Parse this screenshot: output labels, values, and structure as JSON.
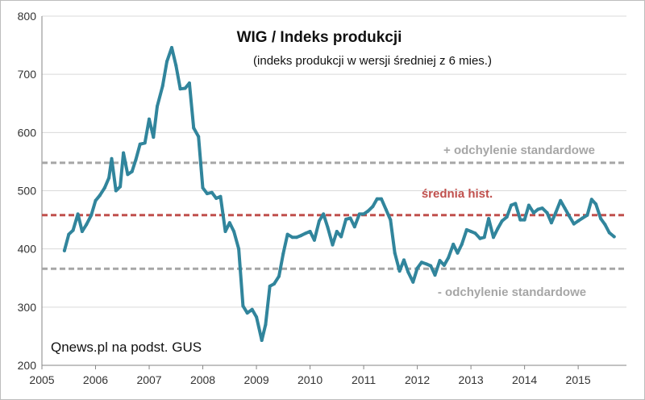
{
  "chart_data": {
    "type": "line",
    "title": "WIG / Indeks produkcji",
    "subtitle": "(indeks produkcji w wersji średniej z 6 mies.)",
    "source": "Qnews.pl na podst. GUS",
    "xlabel": "",
    "ylabel": "",
    "xlim": [
      2005,
      2015.9
    ],
    "ylim": [
      200,
      800
    ],
    "x_ticks": [
      "2005",
      "2006",
      "2007",
      "2008",
      "2009",
      "2010",
      "2011",
      "2012",
      "2013",
      "2014",
      "2015"
    ],
    "y_ticks": [
      "200",
      "300",
      "400",
      "500",
      "600",
      "700",
      "800"
    ],
    "grid": "horizontal",
    "series": [
      {
        "name": "WIG / Indeks produkcji",
        "color": "#31859c",
        "points": [
          [
            2005.42,
            397
          ],
          [
            2005.5,
            425
          ],
          [
            2005.58,
            432
          ],
          [
            2005.67,
            460
          ],
          [
            2005.75,
            430
          ],
          [
            2005.83,
            442
          ],
          [
            2005.92,
            458
          ],
          [
            2006.0,
            483
          ],
          [
            2006.08,
            492
          ],
          [
            2006.17,
            505
          ],
          [
            2006.25,
            522
          ],
          [
            2006.3,
            555
          ],
          [
            2006.38,
            500
          ],
          [
            2006.46,
            507
          ],
          [
            2006.52,
            565
          ],
          [
            2006.6,
            528
          ],
          [
            2006.68,
            533
          ],
          [
            2006.75,
            553
          ],
          [
            2006.83,
            580
          ],
          [
            2006.92,
            582
          ],
          [
            2007.0,
            623
          ],
          [
            2007.08,
            592
          ],
          [
            2007.15,
            645
          ],
          [
            2007.25,
            680
          ],
          [
            2007.33,
            722
          ],
          [
            2007.42,
            746
          ],
          [
            2007.5,
            715
          ],
          [
            2007.58,
            675
          ],
          [
            2007.67,
            676
          ],
          [
            2007.75,
            685
          ],
          [
            2007.83,
            608
          ],
          [
            2007.92,
            593
          ],
          [
            2008.0,
            505
          ],
          [
            2008.08,
            495
          ],
          [
            2008.17,
            497
          ],
          [
            2008.25,
            487
          ],
          [
            2008.33,
            490
          ],
          [
            2008.42,
            430
          ],
          [
            2008.5,
            445
          ],
          [
            2008.58,
            430
          ],
          [
            2008.67,
            400
          ],
          [
            2008.75,
            302
          ],
          [
            2008.83,
            290
          ],
          [
            2008.92,
            296
          ],
          [
            2009.0,
            283
          ],
          [
            2009.1,
            243
          ],
          [
            2009.17,
            270
          ],
          [
            2009.25,
            336
          ],
          [
            2009.33,
            340
          ],
          [
            2009.42,
            353
          ],
          [
            2009.5,
            392
          ],
          [
            2009.58,
            425
          ],
          [
            2009.67,
            420
          ],
          [
            2009.75,
            420
          ],
          [
            2009.83,
            423
          ],
          [
            2009.92,
            427
          ],
          [
            2010.0,
            430
          ],
          [
            2010.08,
            415
          ],
          [
            2010.17,
            448
          ],
          [
            2010.25,
            460
          ],
          [
            2010.33,
            437
          ],
          [
            2010.42,
            407
          ],
          [
            2010.5,
            430
          ],
          [
            2010.58,
            421
          ],
          [
            2010.67,
            451
          ],
          [
            2010.75,
            453
          ],
          [
            2010.83,
            438
          ],
          [
            2010.92,
            460
          ],
          [
            2011.0,
            460
          ],
          [
            2011.08,
            465
          ],
          [
            2011.17,
            473
          ],
          [
            2011.25,
            486
          ],
          [
            2011.33,
            486
          ],
          [
            2011.42,
            467
          ],
          [
            2011.5,
            450
          ],
          [
            2011.58,
            393
          ],
          [
            2011.67,
            362
          ],
          [
            2011.75,
            381
          ],
          [
            2011.83,
            360
          ],
          [
            2011.92,
            343
          ],
          [
            2012.0,
            367
          ],
          [
            2012.08,
            377
          ],
          [
            2012.17,
            374
          ],
          [
            2012.25,
            371
          ],
          [
            2012.33,
            355
          ],
          [
            2012.42,
            380
          ],
          [
            2012.5,
            372
          ],
          [
            2012.58,
            385
          ],
          [
            2012.67,
            408
          ],
          [
            2012.75,
            393
          ],
          [
            2012.83,
            408
          ],
          [
            2012.92,
            433
          ],
          [
            2013.0,
            430
          ],
          [
            2013.08,
            427
          ],
          [
            2013.17,
            418
          ],
          [
            2013.25,
            420
          ],
          [
            2013.33,
            452
          ],
          [
            2013.42,
            420
          ],
          [
            2013.5,
            435
          ],
          [
            2013.58,
            448
          ],
          [
            2013.67,
            455
          ],
          [
            2013.75,
            475
          ],
          [
            2013.83,
            478
          ],
          [
            2013.92,
            450
          ],
          [
            2014.0,
            450
          ],
          [
            2014.08,
            475
          ],
          [
            2014.17,
            462
          ],
          [
            2014.25,
            468
          ],
          [
            2014.33,
            470
          ],
          [
            2014.42,
            462
          ],
          [
            2014.5,
            445
          ],
          [
            2014.58,
            462
          ],
          [
            2014.67,
            483
          ],
          [
            2014.75,
            470
          ],
          [
            2014.83,
            457
          ],
          [
            2014.92,
            443
          ],
          [
            2015.0,
            448
          ],
          [
            2015.08,
            453
          ],
          [
            2015.17,
            458
          ],
          [
            2015.25,
            485
          ],
          [
            2015.33,
            477
          ],
          [
            2015.42,
            452
          ],
          [
            2015.5,
            442
          ],
          [
            2015.58,
            428
          ],
          [
            2015.67,
            421
          ]
        ]
      }
    ],
    "reference_lines": [
      {
        "name": "+ odchylenie standardowe",
        "value": 548,
        "color": "#a6a6a6"
      },
      {
        "name": "średnia hist.",
        "value": 458,
        "color": "#c0504d"
      },
      {
        "name": "- odchylenie standardowe",
        "value": 366,
        "color": "#a6a6a6"
      }
    ]
  }
}
